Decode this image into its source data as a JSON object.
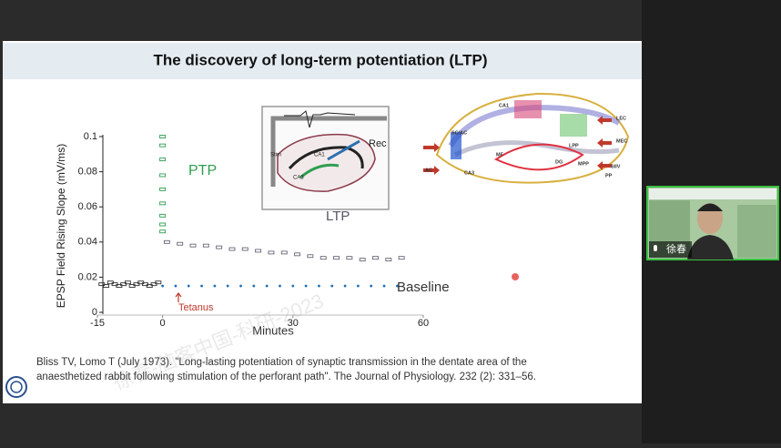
{
  "slide_title": "The discovery of long-term potentiation (LTP)",
  "chart_data": {
    "type": "scatter",
    "ylabel": "EPSP Field Rising Slope (mV/ms)",
    "xlabel": "Minutes",
    "xlim": [
      -15,
      60
    ],
    "ylim": [
      0,
      0.1
    ],
    "xticks": [
      -15,
      0,
      30,
      60
    ],
    "yticks": [
      0,
      0.02,
      0.04,
      0.06,
      0.08,
      0.1
    ],
    "annotations": [
      "PTP",
      "LTP",
      "Baseline",
      "Tetanus"
    ],
    "annotation_colors": [
      "#2e9e4f",
      "#555566",
      "#333333",
      "#c0392b"
    ],
    "series": [
      {
        "color": "#333333",
        "x": [
          -14,
          -13,
          -12,
          -11,
          -10,
          -9,
          -8,
          -7,
          -6,
          -5,
          -4,
          -3,
          -2,
          -1
        ],
        "values": [
          0.016,
          0.015,
          0.017,
          0.016,
          0.015,
          0.016,
          0.017,
          0.015,
          0.016,
          0.017,
          0.016,
          0.015,
          0.016,
          0.017
        ]
      },
      {
        "color": "#2e9e4f",
        "x": [
          0,
          0,
          0,
          0,
          0,
          0,
          0,
          0,
          0
        ],
        "values": [
          0.1,
          0.095,
          0.087,
          0.078,
          0.07,
          0.062,
          0.055,
          0.05,
          0.046
        ]
      },
      {
        "color": "#666677",
        "x": [
          1,
          4,
          7,
          10,
          13,
          16,
          19,
          22,
          25,
          28,
          31,
          34,
          37,
          40,
          43,
          46,
          49,
          52,
          55
        ],
        "values": [
          0.04,
          0.039,
          0.038,
          0.038,
          0.037,
          0.036,
          0.036,
          0.035,
          0.034,
          0.034,
          0.033,
          0.032,
          0.031,
          0.031,
          0.031,
          0.03,
          0.031,
          0.03,
          0.031
        ]
      },
      {
        "color": "#1f6fb2",
        "x": [
          0,
          3,
          6,
          9,
          12,
          15,
          18,
          21,
          24,
          27,
          30,
          33,
          36,
          39,
          42,
          45,
          48,
          51,
          54
        ],
        "values": [
          0.015,
          0.015,
          0.015,
          0.015,
          0.015,
          0.015,
          0.015,
          0.015,
          0.015,
          0.015,
          0.015,
          0.015,
          0.015,
          0.015,
          0.015,
          0.015,
          0.015,
          0.015,
          0.015
        ]
      }
    ]
  },
  "figure_labels": {
    "left": [
      "Rec",
      "Stim",
      "CA1",
      "CA3"
    ],
    "right": [
      "CA1",
      "SC/AC",
      "CA3",
      "AC",
      "MF",
      "DG",
      "LPP",
      "MPP",
      "PP",
      "LEC",
      "MEC",
      "SIIV"
    ]
  },
  "watermark": "徐春-脑客中国-科研-2023",
  "citation": [
    "Bliss TV, Lomo T (July 1973). \"Long-lasting potentiation of synaptic transmission in the dentate area of the",
    "anaesthetized rabbit following stimulation of the perforant path\". The Journal of Physiology. 232 (2): 331–56."
  ],
  "participant": {
    "name": "徐春"
  }
}
